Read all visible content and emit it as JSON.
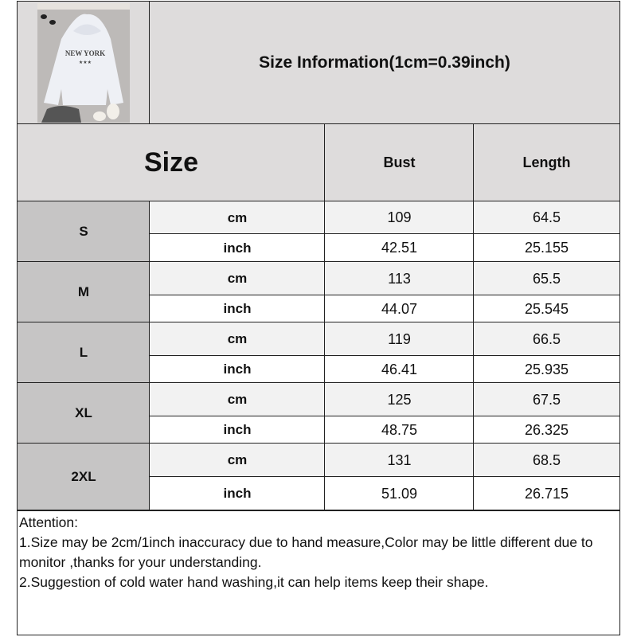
{
  "header": {
    "title": "Size Information(1cm=0.39inch)",
    "product_image_text": "NEW YORK"
  },
  "table": {
    "size_header": "Size",
    "columns": [
      "Bust",
      "Length"
    ],
    "rows": [
      {
        "size": "S",
        "cm": {
          "unit": "cm",
          "values": [
            "109",
            "64.5"
          ]
        },
        "inch": {
          "unit": "inch",
          "values": [
            "42.51",
            "25.155"
          ]
        }
      },
      {
        "size": "M",
        "cm": {
          "unit": "cm",
          "values": [
            "113",
            "65.5"
          ]
        },
        "inch": {
          "unit": "inch",
          "values": [
            "44.07",
            "25.545"
          ]
        }
      },
      {
        "size": "L",
        "cm": {
          "unit": "cm",
          "values": [
            "119",
            "66.5"
          ]
        },
        "inch": {
          "unit": "inch",
          "values": [
            "46.41",
            "25.935"
          ]
        }
      },
      {
        "size": "XL",
        "cm": {
          "unit": "cm",
          "values": [
            "125",
            "67.5"
          ]
        },
        "inch": {
          "unit": "inch",
          "values": [
            "48.75",
            "26.325"
          ]
        }
      },
      {
        "size": "2XL",
        "cm": {
          "unit": "cm",
          "values": [
            "131",
            "68.5"
          ]
        },
        "inch": {
          "unit": "inch",
          "values": [
            "51.09",
            "26.715"
          ]
        }
      }
    ]
  },
  "notes": {
    "lines": [
      "Attention:",
      "1.Size may be 2cm/1inch inaccuracy due to hand measure,Color may be little different due to monitor ,thanks for your understanding.",
      "2.Suggestion of cold water hand washing,it can help items keep their shape."
    ]
  }
}
